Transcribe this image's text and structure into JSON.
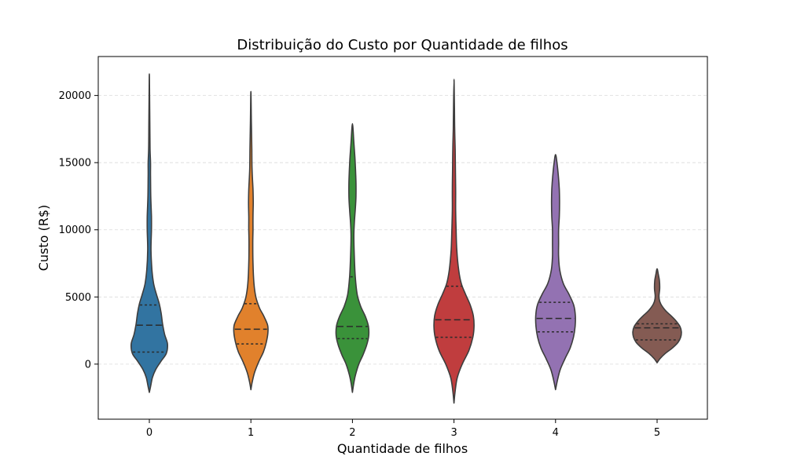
{
  "chart_data": {
    "type": "violin",
    "title": "Distribuição do Custo por Quantidade de filhos",
    "xlabel": "Quantidade de filhos",
    "ylabel": "Custo (R$)",
    "categories": [
      "0",
      "1",
      "2",
      "3",
      "4",
      "5"
    ],
    "y_ticks": [
      0,
      5000,
      10000,
      15000,
      20000
    ],
    "y_tick_labels": [
      "0",
      "5000",
      "10000",
      "15000",
      "20000"
    ],
    "ylim": [
      -4100,
      22900
    ],
    "grid": "y-dashed",
    "inner": "quartile",
    "colors": [
      "#3274a1",
      "#e1812c",
      "#3a923a",
      "#c03d3e",
      "#9372b2",
      "#845b53"
    ],
    "violins": [
      {
        "category": "0",
        "min": -2100,
        "max": 21600,
        "quartiles": [
          900,
          2900,
          4400
        ],
        "profile": [
          [
            -2100,
            0
          ],
          [
            -1600,
            0.06
          ],
          [
            -1000,
            0.13
          ],
          [
            -400,
            0.27
          ],
          [
            200,
            0.49
          ],
          [
            800,
            0.72
          ],
          [
            1500,
            0.77
          ],
          [
            2200,
            0.65
          ],
          [
            3000,
            0.56
          ],
          [
            3800,
            0.5
          ],
          [
            4500,
            0.42
          ],
          [
            5200,
            0.3
          ],
          [
            6000,
            0.18
          ],
          [
            7000,
            0.11
          ],
          [
            8500,
            0.07
          ],
          [
            10000,
            0.09
          ],
          [
            11000,
            0.09
          ],
          [
            12500,
            0.06
          ],
          [
            14000,
            0.05
          ],
          [
            15000,
            0.05
          ],
          [
            16000,
            0.03
          ],
          [
            18000,
            0.02
          ],
          [
            20000,
            0.01
          ],
          [
            21600,
            0
          ]
        ]
      },
      {
        "category": "1",
        "min": -1900,
        "max": 20300,
        "quartiles": [
          1500,
          2600,
          4500
        ],
        "profile": [
          [
            -1900,
            0
          ],
          [
            -1300,
            0.06
          ],
          [
            -600,
            0.16
          ],
          [
            200,
            0.34
          ],
          [
            900,
            0.53
          ],
          [
            1600,
            0.65
          ],
          [
            2300,
            0.72
          ],
          [
            2900,
            0.71
          ],
          [
            3600,
            0.54
          ],
          [
            4200,
            0.36
          ],
          [
            5000,
            0.21
          ],
          [
            6000,
            0.13
          ],
          [
            7500,
            0.09
          ],
          [
            9000,
            0.08
          ],
          [
            10000,
            0.09
          ],
          [
            11000,
            0.09
          ],
          [
            12000,
            0.1
          ],
          [
            13000,
            0.09
          ],
          [
            14500,
            0.05
          ],
          [
            16000,
            0.04
          ],
          [
            18000,
            0.02
          ],
          [
            20300,
            0
          ]
        ]
      },
      {
        "category": "2",
        "min": -2100,
        "max": 17900,
        "quartiles": [
          1900,
          2800,
          6500
        ],
        "profile": [
          [
            -2100,
            0
          ],
          [
            -1500,
            0.05
          ],
          [
            -800,
            0.13
          ],
          [
            0,
            0.27
          ],
          [
            700,
            0.45
          ],
          [
            1400,
            0.6
          ],
          [
            2100,
            0.69
          ],
          [
            2800,
            0.68
          ],
          [
            3500,
            0.56
          ],
          [
            4300,
            0.35
          ],
          [
            5200,
            0.2
          ],
          [
            6500,
            0.12
          ],
          [
            8000,
            0.08
          ],
          [
            9500,
            0.06
          ],
          [
            10500,
            0.08
          ],
          [
            11500,
            0.12
          ],
          [
            12500,
            0.15
          ],
          [
            13500,
            0.15
          ],
          [
            14500,
            0.13
          ],
          [
            15500,
            0.1
          ],
          [
            16500,
            0.06
          ],
          [
            17900,
            0
          ]
        ]
      },
      {
        "category": "3",
        "min": -2900,
        "max": 21200,
        "quartiles": [
          2000,
          3300,
          5800
        ],
        "profile": [
          [
            -2900,
            0
          ],
          [
            -2000,
            0.05
          ],
          [
            -1000,
            0.14
          ],
          [
            0,
            0.35
          ],
          [
            1000,
            0.63
          ],
          [
            2000,
            0.8
          ],
          [
            2800,
            0.85
          ],
          [
            3600,
            0.82
          ],
          [
            4400,
            0.69
          ],
          [
            5200,
            0.49
          ],
          [
            6000,
            0.31
          ],
          [
            7000,
            0.2
          ],
          [
            8500,
            0.12
          ],
          [
            10000,
            0.09
          ],
          [
            11500,
            0.07
          ],
          [
            13000,
            0.07
          ],
          [
            14500,
            0.06
          ],
          [
            16000,
            0.05
          ],
          [
            17500,
            0.03
          ],
          [
            19000,
            0.02
          ],
          [
            21200,
            0
          ]
        ]
      },
      {
        "category": "4",
        "min": -1900,
        "max": 15600,
        "quartiles": [
          2400,
          3400,
          4600
        ],
        "profile": [
          [
            -1900,
            0
          ],
          [
            -1200,
            0.08
          ],
          [
            -400,
            0.2
          ],
          [
            400,
            0.4
          ],
          [
            1200,
            0.62
          ],
          [
            2000,
            0.76
          ],
          [
            2800,
            0.83
          ],
          [
            3600,
            0.84
          ],
          [
            4400,
            0.77
          ],
          [
            5200,
            0.57
          ],
          [
            6000,
            0.33
          ],
          [
            7000,
            0.18
          ],
          [
            8000,
            0.13
          ],
          [
            9000,
            0.13
          ],
          [
            10000,
            0.13
          ],
          [
            11000,
            0.16
          ],
          [
            12000,
            0.17
          ],
          [
            13000,
            0.16
          ],
          [
            14000,
            0.12
          ],
          [
            15000,
            0.06
          ],
          [
            15600,
            0
          ]
        ]
      },
      {
        "category": "5",
        "min": 100,
        "max": 7100,
        "quartiles": [
          1800,
          2700,
          3000
        ],
        "profile": [
          [
            100,
            0
          ],
          [
            400,
            0.12
          ],
          [
            800,
            0.35
          ],
          [
            1200,
            0.65
          ],
          [
            1600,
            0.88
          ],
          [
            2000,
            1.0
          ],
          [
            2400,
            1.03
          ],
          [
            2800,
            0.97
          ],
          [
            3200,
            0.81
          ],
          [
            3600,
            0.59
          ],
          [
            4000,
            0.35
          ],
          [
            4500,
            0.15
          ],
          [
            5000,
            0.08
          ],
          [
            5600,
            0.11
          ],
          [
            6200,
            0.1
          ],
          [
            6700,
            0.05
          ],
          [
            7100,
            0
          ]
        ]
      }
    ]
  }
}
